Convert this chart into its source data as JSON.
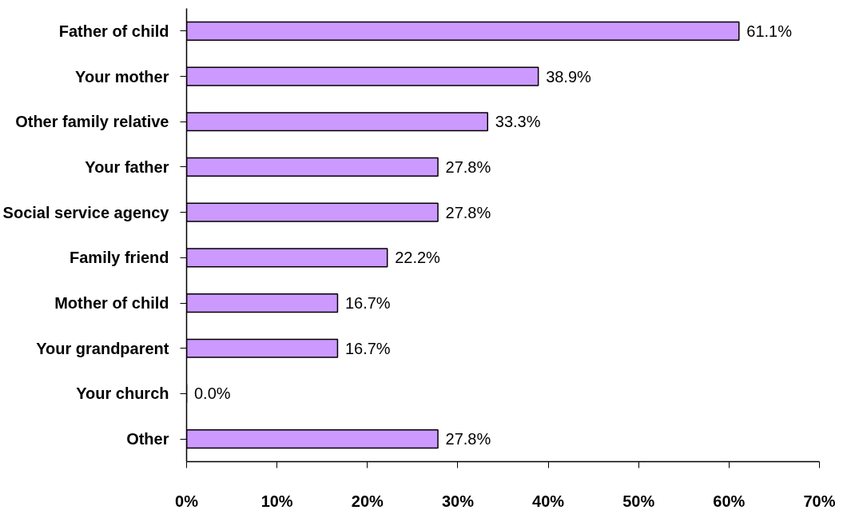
{
  "chart_data": {
    "type": "bar",
    "orientation": "horizontal",
    "categories": [
      "Father of child",
      "Your mother",
      "Other family relative",
      "Your father",
      "Social service agency",
      "Family friend",
      "Mother of child",
      "Your grandparent",
      "Your church",
      "Other"
    ],
    "values": [
      61.1,
      38.9,
      33.3,
      27.8,
      27.8,
      22.2,
      16.7,
      16.7,
      0.0,
      27.8
    ],
    "value_labels": [
      "61.1%",
      "38.9%",
      "33.3%",
      "27.8%",
      "27.8%",
      "22.2%",
      "16.7%",
      "16.7%",
      "0.0%",
      "27.8%"
    ],
    "color": "#cc99ff",
    "xlim": [
      0,
      70
    ],
    "xticks": [
      {
        "value": 0,
        "label": "0%"
      },
      {
        "value": 10,
        "label": "10%"
      },
      {
        "value": 20,
        "label": "20%"
      },
      {
        "value": 30,
        "label": "30%"
      },
      {
        "value": 40,
        "label": "40%"
      },
      {
        "value": 50,
        "label": "50%"
      },
      {
        "value": 60,
        "label": "60%"
      },
      {
        "value": 70,
        "label": "70%"
      }
    ],
    "grid": false
  }
}
